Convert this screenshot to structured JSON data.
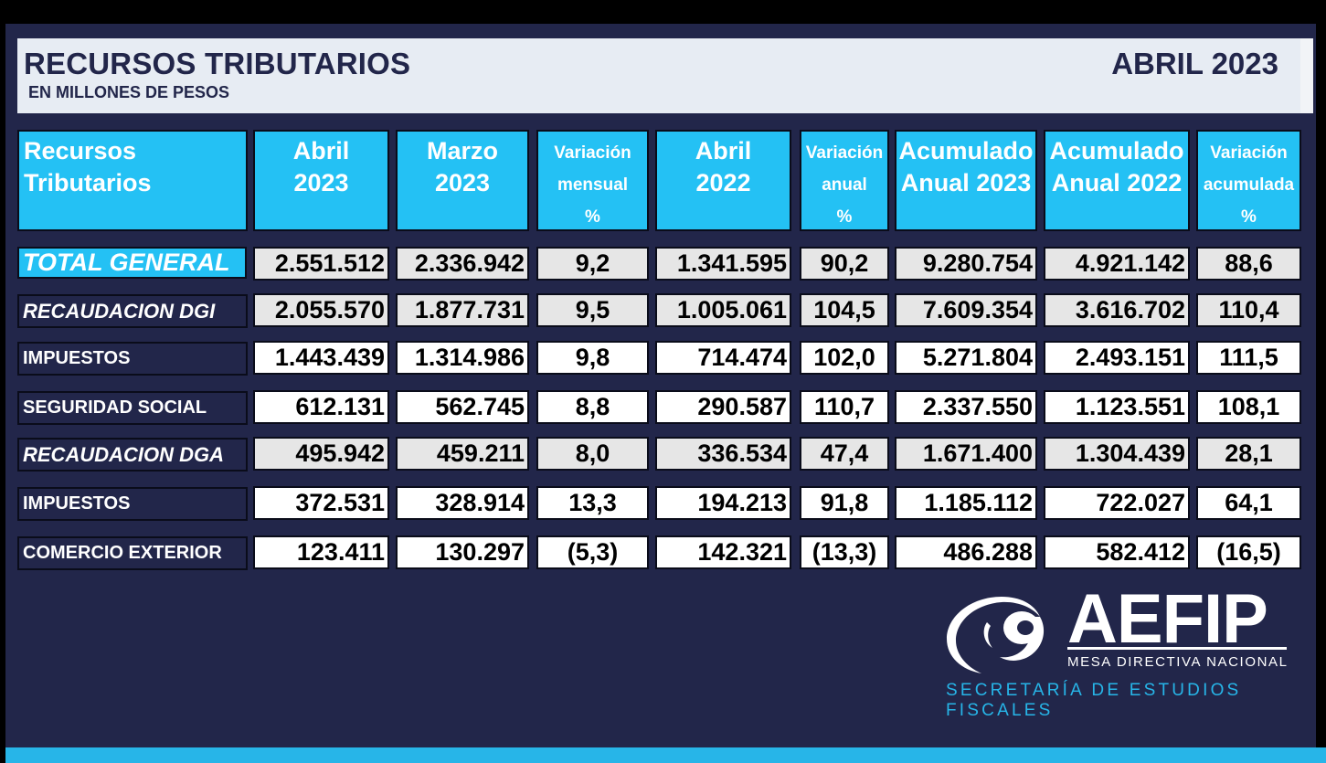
{
  "header": {
    "title": "RECURSOS TRIBUTARIOS",
    "subtitle": "EN MILLONES DE PESOS",
    "period": "ABRIL 2023"
  },
  "table": {
    "columns": [
      {
        "line1": "Recursos",
        "line2": "Tributarios",
        "line3": ""
      },
      {
        "line1": "Abril",
        "line2": "2023",
        "line3": ""
      },
      {
        "line1": "Marzo",
        "line2": "2023",
        "line3": ""
      },
      {
        "line1": "Variación",
        "line2": "mensual",
        "line3": "%"
      },
      {
        "line1": "Abril",
        "line2": "2022",
        "line3": ""
      },
      {
        "line1": "Variación",
        "line2": "anual",
        "line3": "%"
      },
      {
        "line1": "Acumulado",
        "line2": "Anual 2023",
        "line3": ""
      },
      {
        "line1": "Acumulado",
        "line2": "Anual 2022",
        "line3": ""
      },
      {
        "line1": "Variación",
        "line2": "acumulada",
        "line3": "%"
      }
    ],
    "rows": [
      {
        "label": "TOTAL GENERAL",
        "values": [
          "2.551.512",
          "2.336.942",
          "9,2",
          "1.341.595",
          "90,2",
          "9.280.754",
          "4.921.142",
          "88,6"
        ]
      },
      {
        "label": "RECAUDACION DGI",
        "values": [
          "2.055.570",
          "1.877.731",
          "9,5",
          "1.005.061",
          "104,5",
          "7.609.354",
          "3.616.702",
          "110,4"
        ]
      },
      {
        "label": "IMPUESTOS",
        "values": [
          "1.443.439",
          "1.314.986",
          "9,8",
          "714.474",
          "102,0",
          "5.271.804",
          "2.493.151",
          "111,5"
        ]
      },
      {
        "label": "SEGURIDAD SOCIAL",
        "values": [
          "612.131",
          "562.745",
          "8,8",
          "290.587",
          "110,7",
          "2.337.550",
          "1.123.551",
          "108,1"
        ]
      },
      {
        "label": "RECAUDACION DGA",
        "values": [
          "495.942",
          "459.211",
          "8,0",
          "336.534",
          "47,4",
          "1.671.400",
          "1.304.439",
          "28,1"
        ]
      },
      {
        "label": "IMPUESTOS",
        "values": [
          "372.531",
          "328.914",
          "13,3",
          "194.213",
          "91,8",
          "1.185.112",
          "722.027",
          "64,1"
        ]
      },
      {
        "label": "COMERCIO EXTERIOR",
        "values": [
          "123.411",
          "130.297",
          "(5,3)",
          "142.321",
          "(13,3)",
          "486.288",
          "582.412",
          "(16,5)"
        ]
      }
    ]
  },
  "logo": {
    "name": "AEFIP",
    "tagline": "MESA DIRECTIVA NACIONAL",
    "department": "SECRETARÍA DE ESTUDIOS FISCALES"
  },
  "colors": {
    "background": "#22264a",
    "accent": "#24c1f4",
    "grey_row": "#e6e6e6"
  }
}
